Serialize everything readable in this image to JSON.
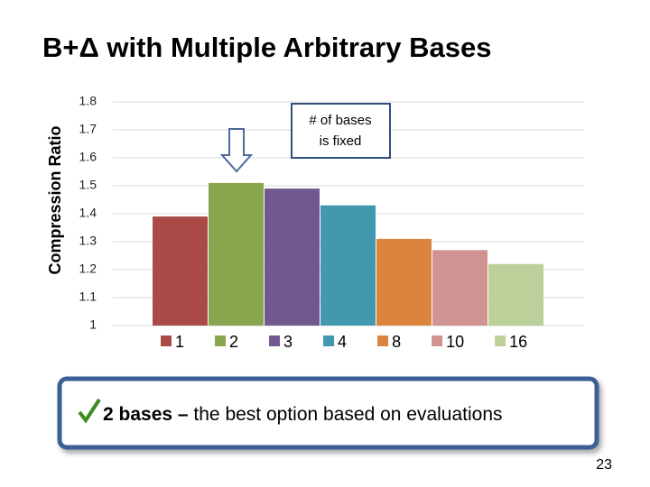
{
  "chart_data": {
    "type": "bar",
    "title": "B+Δ with Multiple Arbitrary Bases",
    "ylabel": "Compression Ratio",
    "annotation": [
      "# of bases",
      "is fixed"
    ],
    "series": [
      {
        "name": "1",
        "color": "#a94a47",
        "values": [
          1.39
        ]
      },
      {
        "name": "2",
        "color": "#89a54e",
        "values": [
          1.51
        ]
      },
      {
        "name": "3",
        "color": "#71588f",
        "values": [
          1.49
        ]
      },
      {
        "name": "4",
        "color": "#4198af",
        "values": [
          1.43
        ]
      },
      {
        "name": "8",
        "color": "#db843d",
        "values": [
          1.31
        ]
      },
      {
        "name": "10",
        "color": "#d09392",
        "values": [
          1.27
        ]
      },
      {
        "name": "16",
        "color": "#bcd09a",
        "values": [
          1.22
        ]
      }
    ],
    "ylim": [
      1,
      1.8
    ],
    "yticks": [
      1,
      1.1,
      1.2,
      1.3,
      1.4,
      1.5,
      1.6,
      1.7,
      1.8
    ],
    "grid": true
  },
  "callout": {
    "bold": "2 bases –",
    "text": "the best option based on evaluations"
  },
  "page_number": "23"
}
